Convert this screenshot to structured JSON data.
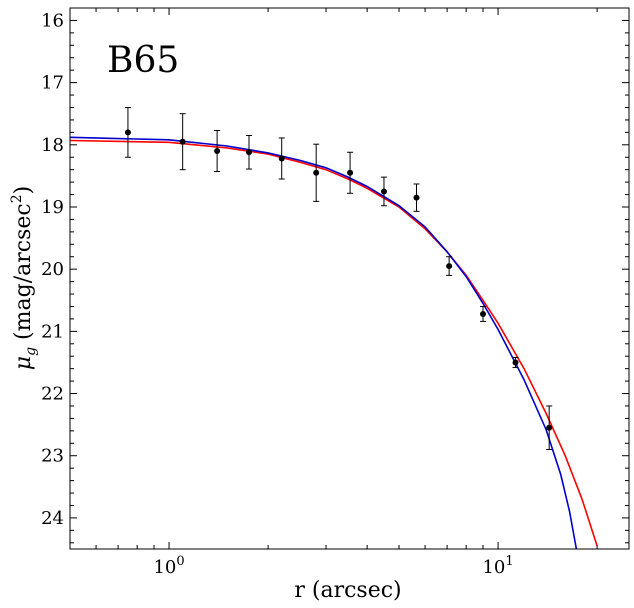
{
  "chart_data": {
    "type": "scatter",
    "annotation": "B65",
    "xlabel": "r (arcsec)",
    "ylabel_main": "μ",
    "ylabel_sub": "g",
    "ylabel_rest": " (mag/arcsec",
    "ylabel_sup": "2",
    "ylabel_close": ")",
    "x_scale": "log",
    "xlim": [
      0.5,
      25
    ],
    "ylim": [
      24.5,
      15.8
    ],
    "y_inverted": true,
    "x_major_ticks": [
      {
        "value": 1,
        "base": "10",
        "exp": "0"
      },
      {
        "value": 10,
        "base": "10",
        "exp": "1"
      }
    ],
    "y_ticks": [
      16,
      17,
      18,
      19,
      20,
      21,
      22,
      23,
      24
    ],
    "y_tick_labels": [
      "16",
      "17",
      "18",
      "19",
      "20",
      "21",
      "22",
      "23",
      "24"
    ],
    "ticks_direction": "in",
    "points": [
      {
        "x": 0.75,
        "y": 17.8,
        "err": 0.4
      },
      {
        "x": 1.1,
        "y": 17.95,
        "err": 0.45
      },
      {
        "x": 1.4,
        "y": 18.1,
        "err": 0.33
      },
      {
        "x": 1.75,
        "y": 18.12,
        "err": 0.27
      },
      {
        "x": 2.2,
        "y": 18.22,
        "err": 0.33
      },
      {
        "x": 2.8,
        "y": 18.45,
        "err": 0.46
      },
      {
        "x": 3.55,
        "y": 18.45,
        "err": 0.33
      },
      {
        "x": 4.5,
        "y": 18.75,
        "err": 0.23
      },
      {
        "x": 5.65,
        "y": 18.85,
        "err": 0.22
      },
      {
        "x": 7.1,
        "y": 19.95,
        "err": 0.15
      },
      {
        "x": 9.0,
        "y": 20.72,
        "err": 0.12
      },
      {
        "x": 11.3,
        "y": 21.5,
        "err": 0.08
      },
      {
        "x": 14.3,
        "y": 22.55,
        "err": 0.35
      }
    ],
    "series": [
      {
        "color": "#ff0000",
        "values": [
          [
            0.5,
            17.93
          ],
          [
            1.0,
            17.96
          ],
          [
            1.5,
            18.05
          ],
          [
            2.0,
            18.15
          ],
          [
            2.5,
            18.28
          ],
          [
            3.0,
            18.4
          ],
          [
            3.5,
            18.55
          ],
          [
            4.0,
            18.7
          ],
          [
            5.0,
            19.0
          ],
          [
            6.0,
            19.35
          ],
          [
            7.0,
            19.72
          ],
          [
            8.0,
            20.1
          ],
          [
            9.0,
            20.5
          ],
          [
            10.0,
            20.87
          ],
          [
            12.0,
            21.6
          ],
          [
            14.0,
            22.32
          ],
          [
            16.0,
            23.0
          ],
          [
            18.0,
            23.7
          ],
          [
            20.0,
            24.45
          ]
        ]
      },
      {
        "color": "#0000cc",
        "values": [
          [
            0.5,
            17.88
          ],
          [
            1.0,
            17.92
          ],
          [
            1.5,
            18.02
          ],
          [
            2.0,
            18.13
          ],
          [
            2.5,
            18.25
          ],
          [
            3.0,
            18.37
          ],
          [
            3.5,
            18.52
          ],
          [
            4.0,
            18.67
          ],
          [
            5.0,
            18.98
          ],
          [
            6.0,
            19.32
          ],
          [
            7.0,
            19.72
          ],
          [
            8.0,
            20.12
          ],
          [
            9.0,
            20.55
          ],
          [
            10.0,
            20.97
          ],
          [
            12.0,
            21.78
          ],
          [
            14.0,
            22.58
          ],
          [
            15.5,
            23.3
          ],
          [
            16.5,
            23.9
          ],
          [
            17.3,
            24.5
          ]
        ]
      }
    ]
  }
}
